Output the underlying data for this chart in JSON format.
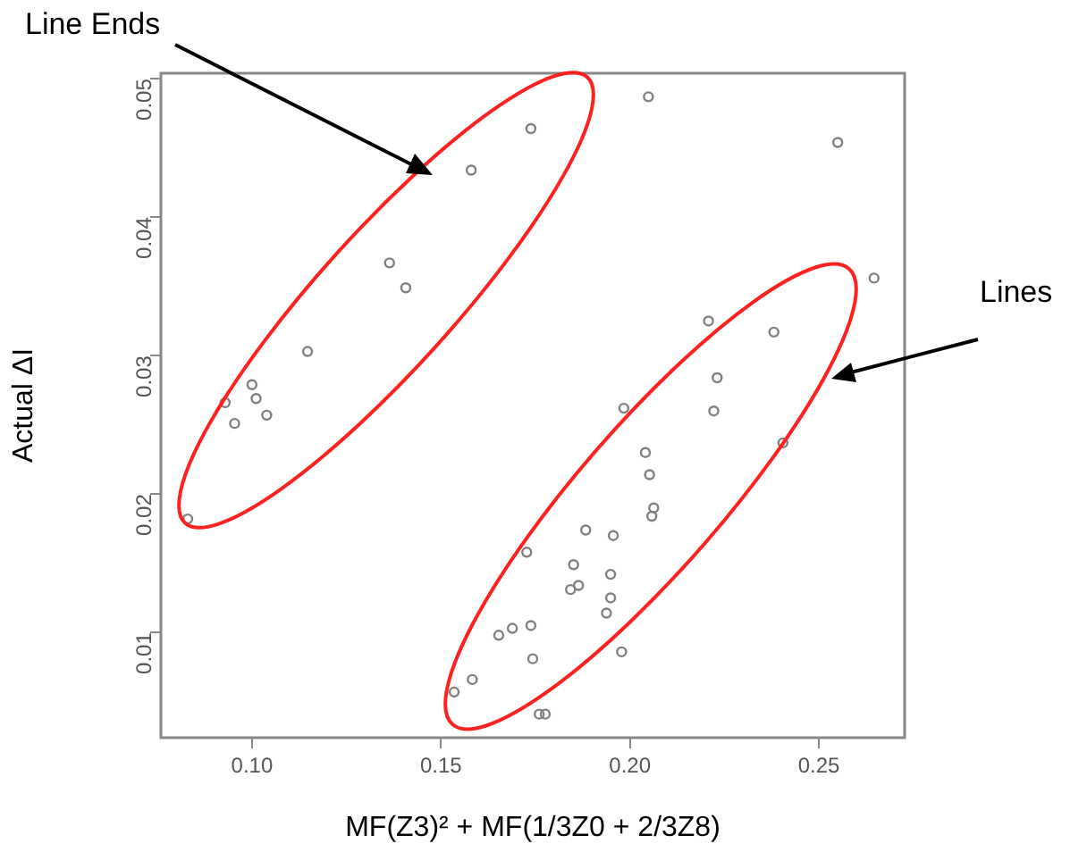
{
  "chart_data": {
    "type": "scatter",
    "xlabel": "MF(Z3)² + MF(1/3Z0 + 2/3Z8)",
    "ylabel": "Actual ΔI",
    "x": [
      0.1738,
      0.158,
      0.1364,
      0.1407,
      0.1147,
      0.1,
      0.0929,
      0.1011,
      0.0954,
      0.1039,
      0.083,
      0.2049,
      0.255,
      0.2646,
      0.2208,
      0.2381,
      0.2231,
      0.1984,
      0.2222,
      0.2405,
      0.2041,
      0.2052,
      0.2063,
      0.2058,
      0.1883,
      0.1956,
      0.1727,
      0.1851,
      0.1864,
      0.1843,
      0.1949,
      0.1949,
      0.1938,
      0.1689,
      0.1653,
      0.1738,
      0.1743,
      0.1978,
      0.1583,
      0.1535,
      0.176,
      0.1776
    ],
    "values": [
      0.0464,
      0.0434,
      0.0367,
      0.0349,
      0.0303,
      0.0279,
      0.0266,
      0.0269,
      0.0251,
      0.0257,
      0.0182,
      0.0487,
      0.0454,
      0.0356,
      0.0325,
      0.0317,
      0.0284,
      0.0262,
      0.026,
      0.0237,
      0.023,
      0.0214,
      0.019,
      0.0184,
      0.0174,
      0.017,
      0.0158,
      0.0149,
      0.0134,
      0.0131,
      0.0142,
      0.0125,
      0.0114,
      0.0103,
      0.0098,
      0.0105,
      0.0081,
      0.0086,
      0.0066,
      0.0057,
      0.0041,
      0.0041
    ],
    "color": "#808080",
    "marker": "circle",
    "xlim": [
      0.0759,
      0.2727
    ],
    "ylim": [
      0.0024,
      0.0504
    ],
    "xticks": [
      {
        "value": 0.1,
        "label": "0.10"
      },
      0.15,
      {
        "value": 0.2,
        "label": "0.20"
      },
      0.25
    ],
    "yticks": [
      0.01,
      0.02,
      0.03,
      0.04,
      0.05
    ],
    "annotations": [
      "Line Ends",
      "Lines"
    ]
  }
}
